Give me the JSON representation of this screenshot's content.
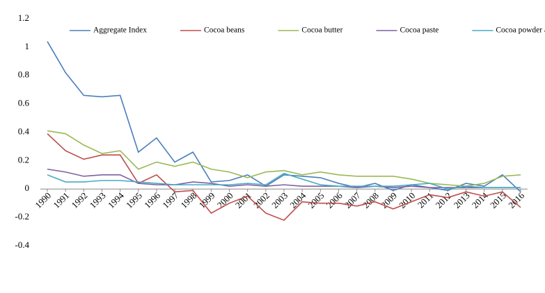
{
  "chart_data": {
    "type": "line",
    "categories": [
      "1990",
      "1991",
      "1992",
      "1993",
      "1994",
      "1995",
      "1996",
      "1997",
      "1998",
      "1999",
      "2000",
      "2001",
      "2002",
      "2003",
      "2004",
      "2005",
      "2006",
      "2007",
      "2008",
      "2009",
      "2010",
      "2011",
      "2012",
      "2013",
      "2014",
      "2015",
      "2016"
    ],
    "series": [
      {
        "name": "Aggregate Index",
        "color": "#4a7ebb",
        "values": [
          1.04,
          0.82,
          0.66,
          0.65,
          0.66,
          0.26,
          0.36,
          0.19,
          0.26,
          0.05,
          0.06,
          0.1,
          0.02,
          0.1,
          0.09,
          0.08,
          0.04,
          0.01,
          0.04,
          -0.01,
          0.03,
          0.01,
          -0.01,
          0.04,
          0.02,
          0.1,
          -0.02
        ]
      },
      {
        "name": "Cocoa beans",
        "color": "#be4b48",
        "values": [
          0.39,
          0.27,
          0.21,
          0.24,
          0.24,
          0.04,
          0.1,
          -0.02,
          -0.01,
          -0.17,
          -0.1,
          -0.05,
          -0.17,
          -0.22,
          -0.09,
          -0.1,
          -0.1,
          -0.12,
          -0.09,
          -0.14,
          -0.09,
          -0.04,
          -0.06,
          -0.02,
          -0.05,
          -0.02,
          -0.13
        ]
      },
      {
        "name": "Cocoa butter",
        "color": "#98b954",
        "values": [
          0.41,
          0.39,
          0.31,
          0.25,
          0.27,
          0.14,
          0.19,
          0.16,
          0.19,
          0.14,
          0.12,
          0.08,
          0.12,
          0.13,
          0.1,
          0.12,
          0.1,
          0.09,
          0.09,
          0.09,
          0.07,
          0.04,
          0.03,
          0.02,
          0.04,
          0.09,
          0.1
        ]
      },
      {
        "name": "Cocoa paste",
        "color": "#7d60a0",
        "values": [
          0.14,
          0.12,
          0.09,
          0.1,
          0.1,
          0.04,
          0.03,
          0.03,
          0.05,
          0.04,
          0.02,
          0.03,
          0.02,
          0.03,
          0.02,
          0.02,
          0.02,
          0.01,
          0.02,
          0.01,
          0.02,
          0.01,
          0.01,
          0.01,
          0.01,
          0.01,
          0.01
        ]
      },
      {
        "name": "Cocoa powder and cake",
        "color": "#46aac5",
        "values": [
          0.1,
          0.05,
          0.05,
          0.06,
          0.06,
          0.05,
          0.04,
          0.03,
          0.03,
          0.03,
          0.03,
          0.04,
          0.03,
          0.11,
          0.07,
          0.03,
          0.02,
          0.02,
          0.02,
          0.02,
          0.03,
          0.04,
          0.0,
          0.02,
          0.01,
          0.01,
          0.01
        ]
      }
    ],
    "ylim": [
      -0.4,
      1.2
    ],
    "yticks": [
      -0.4,
      -0.2,
      0,
      0.2,
      0.4,
      0.6,
      0.8,
      1,
      1.2
    ],
    "grid": false,
    "legend": "top"
  }
}
